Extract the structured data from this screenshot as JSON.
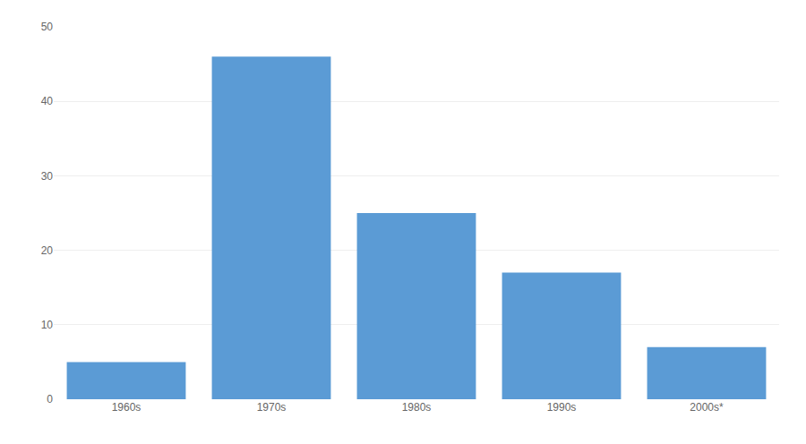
{
  "chart_data": {
    "type": "bar",
    "categories": [
      "1960s",
      "1970s",
      "1980s",
      "1990s",
      "2000s*"
    ],
    "values": [
      5,
      46,
      25,
      17,
      7
    ],
    "color": "#5b9bd5",
    "ylim": [
      0,
      50
    ],
    "yticks": [
      0,
      10,
      20,
      30,
      40,
      50
    ],
    "grid": true
  }
}
